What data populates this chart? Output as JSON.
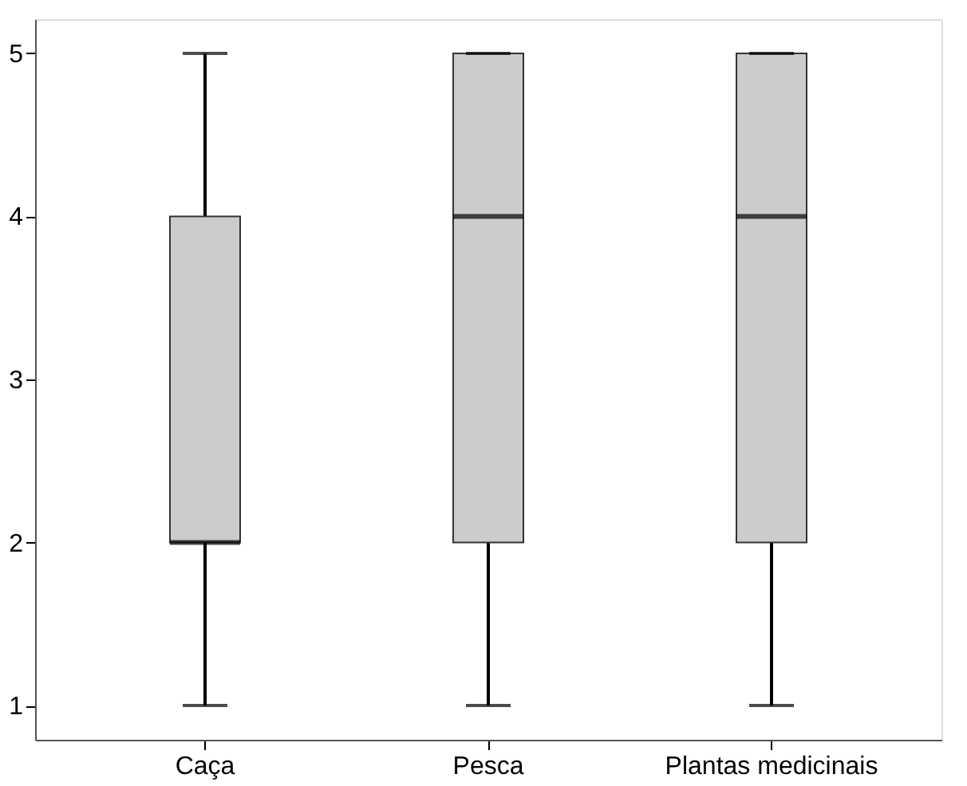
{
  "chart_data": {
    "type": "box",
    "categories": [
      "Caça",
      "Pesca",
      "Plantas medicinais"
    ],
    "boxes": [
      {
        "low": 1,
        "q1": 2,
        "median": 2,
        "q3": 4,
        "high": 5
      },
      {
        "low": 1,
        "q1": 2,
        "median": 4,
        "q3": 5,
        "high": 5
      },
      {
        "low": 1,
        "q1": 2,
        "median": 4,
        "q3": 5,
        "high": 5
      }
    ],
    "color": "#cccccc",
    "ylim": [
      0.79,
      5.21
    ],
    "yticks": [
      1,
      2,
      3,
      4,
      5
    ],
    "grid": false
  }
}
